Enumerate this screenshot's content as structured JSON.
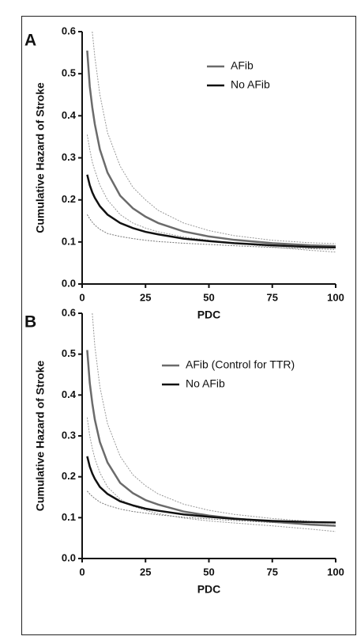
{
  "chart_data": [
    {
      "type": "line",
      "panel_label": "A",
      "xlabel": "PDC",
      "ylabel": "Cumulative Hazard of Stroke",
      "x": [
        2,
        3,
        4,
        5,
        7,
        10,
        15,
        20,
        25,
        30,
        40,
        50,
        60,
        75,
        90,
        100
      ],
      "xlim": [
        0,
        100
      ],
      "xticks": [
        0,
        25,
        50,
        75,
        100
      ],
      "ylim": [
        0,
        0.6
      ],
      "yticks": [
        {
          "value": 0,
          "label": "0.0"
        },
        0.1,
        0.2,
        0.3,
        0.4,
        0.5,
        0.6
      ],
      "series": [
        {
          "color": "#999999",
          "line_style": "dotted",
          "values": [
            null,
            null,
            0.6,
            0.54,
            0.45,
            0.36,
            0.28,
            0.23,
            0.2,
            0.175,
            0.145,
            0.127,
            0.115,
            0.104,
            0.098,
            0.096
          ]
        },
        {
          "color": "#999999",
          "line_style": "dotted",
          "values": [
            0.355,
            0.32,
            0.29,
            0.27,
            0.235,
            0.2,
            0.165,
            0.145,
            0.133,
            0.124,
            0.112,
            0.104,
            0.097,
            0.088,
            0.08,
            0.076
          ]
        },
        {
          "color": "#777777",
          "line_style": "dotted",
          "values": [
            0.165,
            0.155,
            0.147,
            0.14,
            0.13,
            0.12,
            0.113,
            0.108,
            0.104,
            0.101,
            0.097,
            0.094,
            0.091,
            0.087,
            0.084,
            0.082
          ]
        },
        {
          "name": "AFib",
          "color": "#6b6b6b",
          "line_style": "solid",
          "values": [
            0.555,
            0.47,
            0.42,
            0.38,
            0.32,
            0.265,
            0.21,
            0.18,
            0.16,
            0.145,
            0.125,
            0.113,
            0.105,
            0.097,
            0.092,
            0.09
          ]
        },
        {
          "name": "No AFib",
          "color": "#111111",
          "line_style": "solid",
          "values": [
            0.26,
            0.235,
            0.218,
            0.205,
            0.185,
            0.165,
            0.145,
            0.133,
            0.124,
            0.118,
            0.108,
            0.102,
            0.097,
            0.092,
            0.088,
            0.087
          ]
        }
      ]
    },
    {
      "type": "line",
      "panel_label": "B",
      "xlabel": "PDC",
      "ylabel": "Cumulative Hazard of Stroke",
      "x": [
        2,
        3,
        4,
        5,
        7,
        10,
        15,
        20,
        25,
        30,
        40,
        50,
        60,
        75,
        90,
        100
      ],
      "xlim": [
        0,
        100
      ],
      "xticks": [
        0,
        25,
        50,
        75,
        100
      ],
      "ylim": [
        0,
        0.6
      ],
      "yticks": [
        {
          "value": 0,
          "label": "0.0"
        },
        0.1,
        0.2,
        0.3,
        0.4,
        0.5,
        0.6
      ],
      "series": [
        {
          "color": "#999999",
          "line_style": "dotted",
          "values": [
            null,
            null,
            0.6,
            0.52,
            0.42,
            0.33,
            0.25,
            0.205,
            0.178,
            0.158,
            0.133,
            0.118,
            0.108,
            0.098,
            0.091,
            0.088
          ]
        },
        {
          "color": "#999999",
          "line_style": "dotted",
          "values": [
            0.345,
            0.3,
            0.27,
            0.245,
            0.21,
            0.175,
            0.145,
            0.128,
            0.118,
            0.11,
            0.099,
            0.092,
            0.087,
            0.08,
            0.072,
            0.066
          ]
        },
        {
          "color": "#777777",
          "line_style": "dotted",
          "values": [
            0.165,
            0.158,
            0.152,
            0.147,
            0.138,
            0.13,
            0.121,
            0.115,
            0.111,
            0.107,
            0.101,
            0.097,
            0.093,
            0.088,
            0.084,
            0.082
          ]
        },
        {
          "name": "AFib (Control for TTR)",
          "color": "#6b6b6b",
          "line_style": "solid",
          "values": [
            0.51,
            0.43,
            0.38,
            0.34,
            0.285,
            0.235,
            0.185,
            0.16,
            0.143,
            0.132,
            0.115,
            0.105,
            0.098,
            0.09,
            0.083,
            0.08
          ]
        },
        {
          "name": "No AFib",
          "color": "#111111",
          "line_style": "solid",
          "values": [
            0.25,
            0.225,
            0.208,
            0.195,
            0.175,
            0.158,
            0.14,
            0.13,
            0.122,
            0.117,
            0.108,
            0.102,
            0.097,
            0.092,
            0.089,
            0.088
          ]
        }
      ]
    }
  ]
}
